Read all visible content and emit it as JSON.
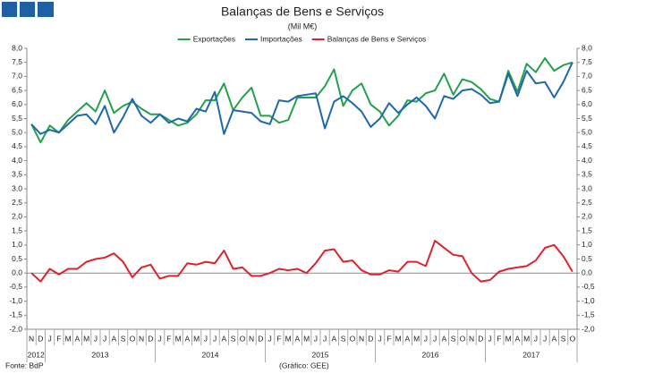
{
  "chart_data": {
    "type": "line",
    "title": "Balanças de Bens e Serviços",
    "subtitle": "(Mil M€)",
    "source": "Fonte: BdP",
    "credit": "(Gráfico: GEE)",
    "categories": [
      "N",
      "D",
      "J",
      "F",
      "M",
      "A",
      "M",
      "J",
      "J",
      "A",
      "S",
      "O",
      "N",
      "D",
      "J",
      "F",
      "M",
      "A",
      "M",
      "J",
      "J",
      "A",
      "S",
      "O",
      "N",
      "D",
      "J",
      "F",
      "M",
      "A",
      "M",
      "J",
      "J",
      "A",
      "S",
      "O",
      "N",
      "D",
      "J",
      "F",
      "M",
      "A",
      "M",
      "J",
      "J",
      "A",
      "S",
      "O",
      "N",
      "D",
      "J",
      "F",
      "M",
      "A",
      "M",
      "J",
      "J",
      "A",
      "S",
      "O"
    ],
    "year_groups": [
      {
        "label": "2012",
        "count": 2
      },
      {
        "label": "2013",
        "count": 12
      },
      {
        "label": "2014",
        "count": 12
      },
      {
        "label": "2015",
        "count": 12
      },
      {
        "label": "2016",
        "count": 12
      },
      {
        "label": "2017",
        "count": 10
      }
    ],
    "series": [
      {
        "name": "Exportações",
        "color": "#23a14c",
        "values": [
          5.3,
          4.65,
          5.25,
          5.0,
          5.45,
          5.75,
          6.05,
          5.75,
          6.5,
          5.7,
          5.95,
          6.1,
          5.85,
          5.65,
          5.65,
          5.45,
          5.25,
          5.35,
          5.65,
          6.15,
          6.15,
          6.75,
          5.8,
          6.25,
          6.6,
          5.6,
          5.6,
          5.35,
          5.45,
          6.25,
          6.25,
          6.25,
          6.65,
          7.25,
          5.95,
          6.5,
          6.75,
          6.0,
          5.75,
          5.25,
          5.6,
          6.15,
          6.1,
          6.4,
          6.5,
          7.1,
          6.35,
          6.9,
          6.8,
          6.55,
          6.2,
          6.1,
          7.2,
          6.45,
          7.45,
          7.15,
          7.65,
          7.2,
          7.4,
          7.5
        ]
      },
      {
        "name": "Importações",
        "color": "#1f68ae",
        "values": [
          5.3,
          4.95,
          5.1,
          5.0,
          5.3,
          5.6,
          5.65,
          5.3,
          5.95,
          5.0,
          5.55,
          6.2,
          5.6,
          5.35,
          5.65,
          5.35,
          5.5,
          5.4,
          5.85,
          5.75,
          6.45,
          4.95,
          5.8,
          5.75,
          5.7,
          5.4,
          5.3,
          6.15,
          6.1,
          6.3,
          6.35,
          6.4,
          5.15,
          6.1,
          6.3,
          6.05,
          5.75,
          5.2,
          5.5,
          6.05,
          5.7,
          6.0,
          6.25,
          5.95,
          5.5,
          6.3,
          6.2,
          6.5,
          6.55,
          6.35,
          6.05,
          6.1,
          7.1,
          6.3,
          7.2,
          6.75,
          6.8,
          6.25,
          6.8,
          7.5
        ]
      },
      {
        "name": "Balanças de Bens e Serviços",
        "color": "#e0212a",
        "values": [
          0.0,
          -0.3,
          0.15,
          -0.05,
          0.15,
          0.15,
          0.4,
          0.5,
          0.55,
          0.7,
          0.4,
          -0.15,
          0.2,
          0.3,
          -0.2,
          -0.1,
          -0.1,
          0.35,
          0.3,
          0.4,
          0.35,
          0.8,
          0.15,
          0.2,
          -0.1,
          -0.1,
          0.0,
          0.15,
          0.1,
          0.15,
          0.0,
          0.35,
          0.8,
          0.85,
          0.4,
          0.45,
          0.1,
          -0.05,
          -0.05,
          0.1,
          0.05,
          0.4,
          0.4,
          0.25,
          1.15,
          0.9,
          0.65,
          0.6,
          0.0,
          -0.3,
          -0.25,
          0.05,
          0.15,
          0.2,
          0.25,
          0.45,
          0.9,
          1.0,
          0.6,
          0.05
        ]
      }
    ],
    "ylim": [
      -2,
      8
    ],
    "yticks": [
      {
        "value": -2,
        "label": "-2,0"
      },
      {
        "value": -1.5,
        "label": "-1,5"
      },
      {
        "value": -1,
        "label": "-1,0"
      },
      {
        "value": -0.5,
        "label": "-0,5"
      },
      {
        "value": 0,
        "label": "0,0"
      },
      {
        "value": 0.5,
        "label": "0,5"
      },
      {
        "value": 1,
        "label": "1,0"
      },
      {
        "value": 1.5,
        "label": "1,5"
      },
      {
        "value": 2,
        "label": "2,0"
      },
      {
        "value": 2.5,
        "label": "2,5"
      },
      {
        "value": 3,
        "label": "3,0"
      },
      {
        "value": 3.5,
        "label": "3,5"
      },
      {
        "value": 4,
        "label": "4,0"
      },
      {
        "value": 4.5,
        "label": "4,5"
      },
      {
        "value": 5,
        "label": "5,0"
      },
      {
        "value": 5.5,
        "label": "5,5"
      },
      {
        "value": 6,
        "label": "6,0"
      },
      {
        "value": 6.5,
        "label": "6,5"
      },
      {
        "value": 7,
        "label": "7,0"
      },
      {
        "value": 7.5,
        "label": "7,5"
      },
      {
        "value": 8,
        "label": "8,0"
      }
    ],
    "y2lim": [
      -2,
      8
    ],
    "y2ticks": [
      {
        "value": -2,
        "label": "-2,0"
      },
      {
        "value": -1.5,
        "label": "-1,5"
      },
      {
        "value": -1,
        "label": "-1,0"
      },
      {
        "value": -0.5,
        "label": "-0,5"
      },
      {
        "value": 0,
        "label": "0,0"
      },
      {
        "value": 0.5,
        "label": "0,5"
      },
      {
        "value": 1,
        "label": "1,0"
      },
      {
        "value": 1.5,
        "label": "1,5"
      },
      {
        "value": 2,
        "label": "2,0"
      },
      {
        "value": 2.5,
        "label": "2,5"
      },
      {
        "value": 3,
        "label": "3,0"
      },
      {
        "value": 3.5,
        "label": "3,5"
      },
      {
        "value": 4,
        "label": "4,0"
      },
      {
        "value": 4.5,
        "label": "4,5"
      },
      {
        "value": 5,
        "label": "5,0"
      },
      {
        "value": 5.5,
        "label": "5,5"
      },
      {
        "value": 6,
        "label": "6,0"
      },
      {
        "value": 6.5,
        "label": "6,5"
      },
      {
        "value": 7,
        "label": "7,0"
      },
      {
        "value": 7.5,
        "label": "7,5"
      },
      {
        "value": 8,
        "label": "8,0"
      }
    ],
    "legend": "top"
  }
}
